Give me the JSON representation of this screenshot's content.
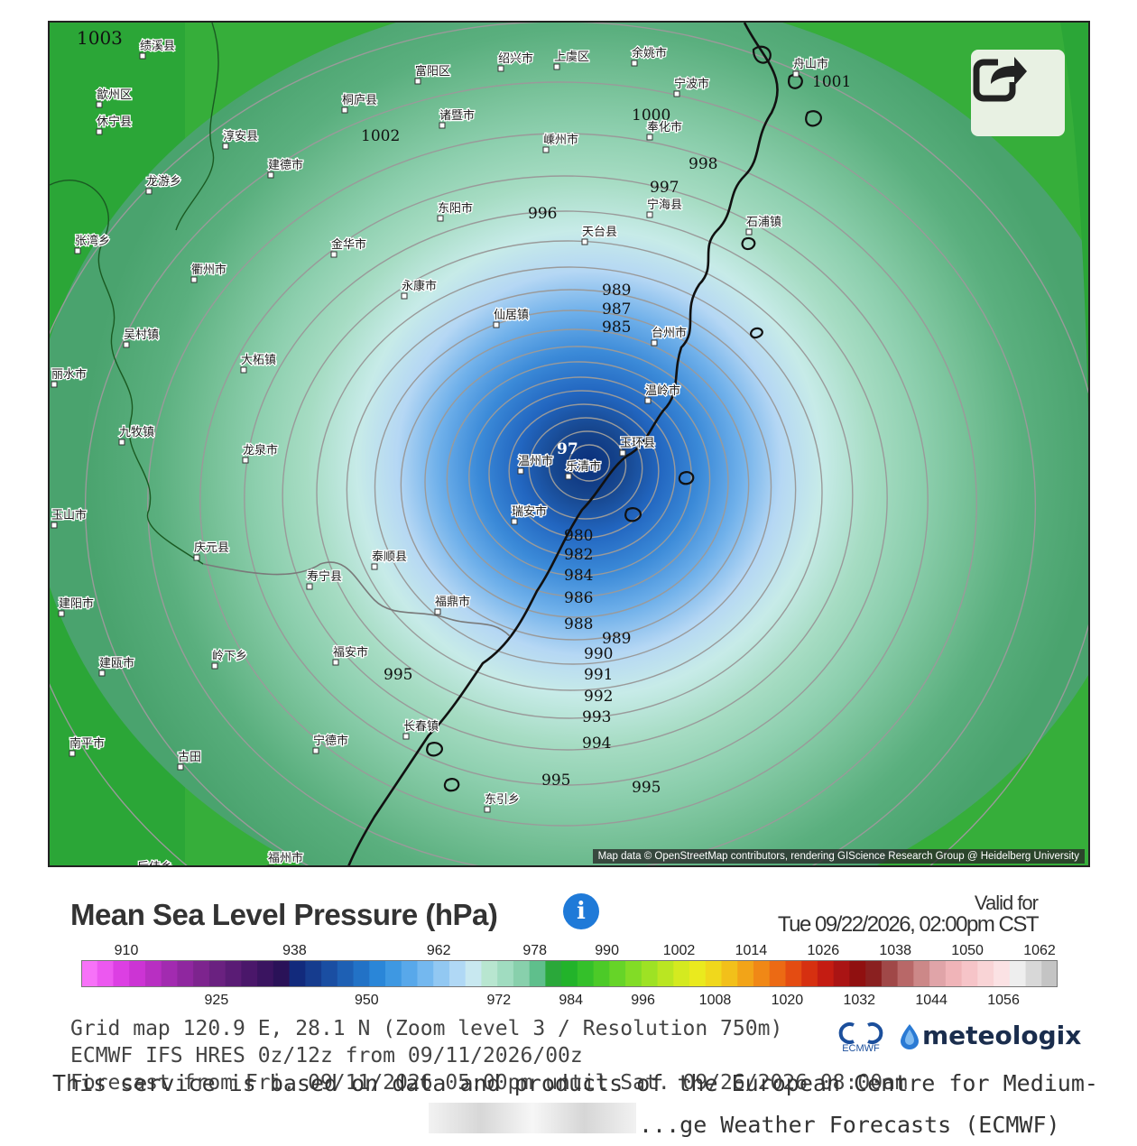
{
  "map": {
    "isobar_labels": [
      "1003",
      "1002",
      "1001",
      "1000",
      "998",
      "997",
      "996",
      "995",
      "995",
      "995",
      "994",
      "993",
      "992",
      "991",
      "990",
      "989",
      "989",
      "988",
      "987",
      "986",
      "985",
      "984",
      "982",
      "980",
      "97"
    ],
    "places": [
      "绩溪县",
      "富阳区",
      "绍兴市",
      "上虞区",
      "余姚市",
      "舟山市",
      "歙州区",
      "休宁县",
      "桐庐县",
      "宁波市",
      "诸暨市",
      "奉化市",
      "淳安县",
      "建德市",
      "嵊州市",
      "龙游乡",
      "东阳市",
      "宁海县",
      "张湾乡",
      "金华市",
      "天台县",
      "石浦镇",
      "衢州市",
      "永康市",
      "仙居镇",
      "台州市",
      "吴村镇",
      "大柘镇",
      "丽水市",
      "温岭市",
      "九牧镇",
      "龙泉市",
      "温州市",
      "玉环县",
      "乐清市",
      "瑞安市",
      "庆元县",
      "寿宁县",
      "泰顺县",
      "福鼎市",
      "建阳市",
      "福安市",
      "岭下乡",
      "建瓯市",
      "宁德市",
      "长春镇",
      "南平市",
      "古田",
      "东引乡",
      "福州市",
      "后佳乡",
      "玉山市"
    ],
    "center_label": "97",
    "attribution": "Map data © OpenStreetMap contributors, rendering GIScience Research Group @ Heidelberg University",
    "share_icon": "share-icon"
  },
  "legend": {
    "title": "Mean Sea Level Pressure (hPa)",
    "info_icon": "info-icon",
    "valid_label": "Valid for",
    "valid_time": "Tue 09/22/2026, 02:00pm CST",
    "top_ticks": [
      "910",
      "938",
      "962",
      "978",
      "990",
      "1002",
      "1014",
      "1026",
      "1038",
      "1050",
      "1062"
    ],
    "bottom_ticks": [
      "925",
      "950",
      "972",
      "984",
      "996",
      "1008",
      "1020",
      "1032",
      "1044",
      "1056"
    ],
    "colors": [
      "#f772f8",
      "#ec58f0",
      "#dc3fe3",
      "#cc34d4",
      "#b82fc2",
      "#a22bb0",
      "#8f279f",
      "#7d248e",
      "#6a2180",
      "#5a1c75",
      "#4a176a",
      "#3a1460",
      "#2a1258",
      "#122a7c",
      "#163c8e",
      "#1a4ea2",
      "#1e60b4",
      "#2272c6",
      "#2a86d8",
      "#3e98e2",
      "#58a8ea",
      "#74b8ef",
      "#92c8f2",
      "#b0d8f5",
      "#c8e8f0",
      "#b8e6d0",
      "#a0dcc0",
      "#88d0ac",
      "#5fbf8c",
      "#2aa83a",
      "#22b32a",
      "#34c02a",
      "#4cca28",
      "#66d428",
      "#82dc26",
      "#9ee224",
      "#bae622",
      "#d4ea20",
      "#eaea1e",
      "#f0d81c",
      "#f2c01a",
      "#f2a418",
      "#f08816",
      "#ec6a14",
      "#e44c12",
      "#d63010",
      "#c41c12",
      "#aa1414",
      "#901010",
      "#8a2020",
      "#a04848",
      "#b86868",
      "#cc8888",
      "#e0a4a8",
      "#f0b4b8",
      "#f6c4c8",
      "#f9d4d6",
      "#fbe2e4",
      "#eeeeee",
      "#d8d8d8",
      "#c4c4c4"
    ]
  },
  "footer": {
    "line1": "Grid map 120.9 E, 28.1 N (Zoom level 3 / Resolution 750m)",
    "line2": "ECMWF IFS HRES 0z/12z from 09/11/2026/00z",
    "line3": "Forecast from Fri. 09/11/2026 05:00pm until Sat. 09/26/2026 08:00am",
    "overlay1": "This service is based on data and products of the European Centre for Medium-",
    "overlay2": "...ge Weather Forecasts (ECMWF)",
    "ecmwf": "ECMWF",
    "brand": "meteologix"
  }
}
